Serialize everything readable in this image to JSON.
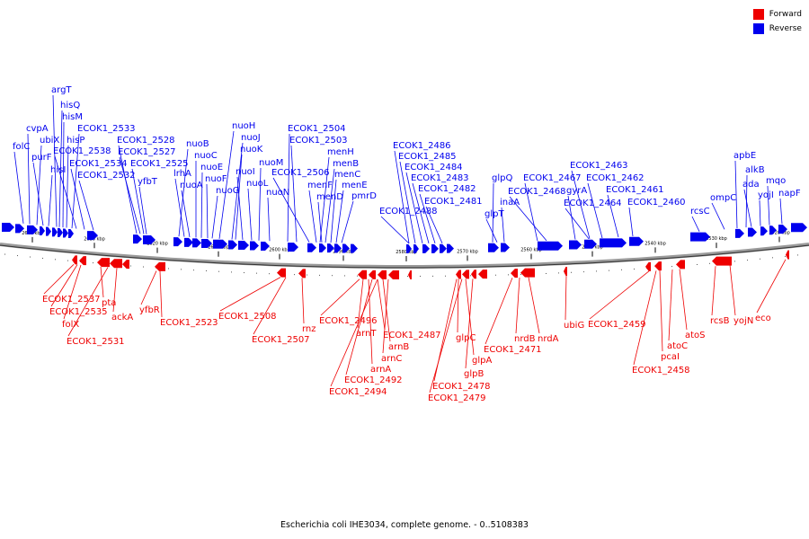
{
  "legend": [
    {
      "label": "Forward",
      "color": "#ee0000"
    },
    {
      "label": "Reverse",
      "color": "#0000ee"
    }
  ],
  "caption": "Escherichia coli IHE3034, complete genome. - 0..5108383",
  "axis_ticks": [
    "2640 kbp",
    "2630 kbp",
    "2620 kbp",
    "2610 kbp",
    "2600 kbp",
    "2590 kbp",
    "2580 kbp",
    "2570 kbp",
    "2560 kbp",
    "2550 kbp",
    "2540 kbp",
    "2530 kbp",
    "2520 kbp"
  ],
  "reverse_genes": [
    "folC",
    "cvpA",
    "ubiX",
    "purF",
    "hisI",
    "argT",
    "hisQ",
    "hisM",
    "hisP",
    "ECOK1_2533",
    "ECOK1_2538",
    "ECOK1_2534",
    "ECOK1_2532",
    "ECOK1_2528",
    "ECOK1_2527",
    "ECOK1_2525",
    "yfbT",
    "nuoB",
    "lrhA",
    "nuoA",
    "nuoC",
    "nuoE",
    "nuoF",
    "nuoG",
    "nuoH",
    "nuoJ",
    "nuoK",
    "nuoI",
    "nuoL",
    "nuoM",
    "nuoN",
    "ECOK1_2504",
    "ECOK1_2503",
    "ECOK1_2506",
    "menH",
    "menB",
    "menF",
    "menD",
    "menC",
    "menE",
    "pmrD",
    "ECOK1_2486",
    "ECOK1_2485",
    "ECOK1_2484",
    "ECOK1_2483",
    "ECOK1_2482",
    "ECOK1_2481",
    "ECOK1_2488",
    "glpQ",
    "glpT",
    "inaA",
    "ECOK1_2467",
    "ECOK1_2468",
    "gyrA",
    "ECOK1_2463",
    "ECOK1_2462",
    "ECOK1_2461",
    "ECOK1_2464",
    "ECOK1_2460",
    "rcsC",
    "ompC",
    "apbE",
    "alkB",
    "ada",
    "yojI",
    "mqo",
    "napF"
  ],
  "forward_genes": [
    "ECOK1_2537",
    "ECOK1_2535",
    "folX",
    "pta",
    "ECOK1_2531",
    "ackA",
    "yfbR",
    "ECOK1_2523",
    "ECOK1_2508",
    "ECOK1_2507",
    "rnz",
    "ECOK1_2496",
    "arnT",
    "ECOK1_2487",
    "arnB",
    "arnC",
    "arnA",
    "ECOK1_2492",
    "ECOK1_2494",
    "glpC",
    "glpA",
    "glpB",
    "ECOK1_2478",
    "ECOK1_2479",
    "ECOK1_2471",
    "nrdB",
    "nrdA",
    "ubiG",
    "ECOK1_2459",
    "pcaI",
    "atoC",
    "atoS",
    "ECOK1_2458",
    "rcsB",
    "yojN",
    "eco"
  ]
}
